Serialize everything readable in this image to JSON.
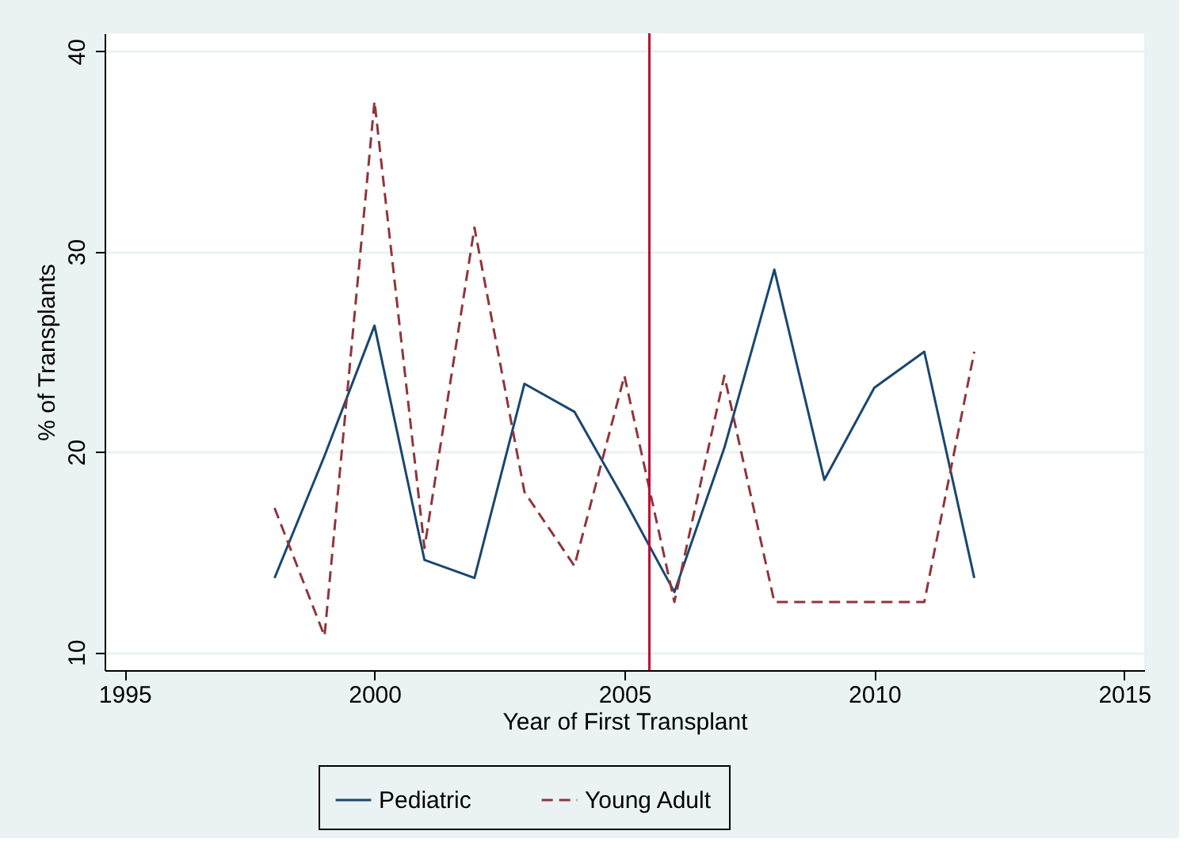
{
  "chart_data": {
    "type": "line",
    "xlabel": "Year of First Transplant",
    "ylabel": "% of Transplants",
    "x": [
      1998,
      1999,
      2000,
      2001,
      2002,
      2003,
      2004,
      2005,
      2006,
      2007,
      2008,
      2009,
      2010,
      2011,
      2012
    ],
    "series": [
      {
        "name": "Pediatric",
        "color": "#1a476f",
        "line_style": "solid",
        "values": [
          13.7,
          19.8,
          26.3,
          14.6,
          13.7,
          23.4,
          22.0,
          17.6,
          13.0,
          20.2,
          29.1,
          18.6,
          23.2,
          25.0,
          13.7
        ]
      },
      {
        "name": "Young Adult",
        "color": "#90353b",
        "line_style": "dashed",
        "values": [
          17.2,
          10.8,
          37.5,
          15.2,
          31.2,
          18.0,
          14.3,
          23.8,
          12.5,
          23.8,
          12.5,
          12.5,
          12.5,
          12.5,
          25.0
        ]
      }
    ],
    "xlim": [
      1994.6,
      2015.4
    ],
    "ylim": [
      9.1,
      40.9
    ],
    "xticks": [
      1995,
      2000,
      2005,
      2010,
      2015
    ],
    "yticks": [
      10,
      20,
      30,
      40
    ],
    "ref_lines": [
      {
        "axis": "x",
        "value": 2005.5,
        "color": "#c10534"
      }
    ],
    "grid": "y",
    "legend": "bottom",
    "marker": "none"
  }
}
